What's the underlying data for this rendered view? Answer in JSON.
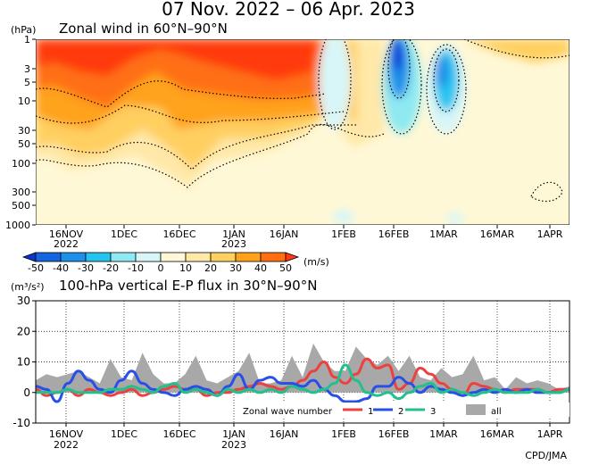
{
  "title": "07 Nov. 2022 – 06 Apr. 2023",
  "footer": "CPD/JMA",
  "panel_top": {
    "unit": "(hPa)",
    "title": "Zonal wind in 60°N–90°N",
    "y_ticks": [
      "1",
      "3",
      "5",
      "10",
      "30",
      "50",
      "100",
      "300",
      "500",
      "1000"
    ],
    "x_ticks": [
      "16NOV",
      "1DEC",
      "16DEC",
      "1JAN",
      "16JAN",
      "1FEB",
      "16FEB",
      "1MAR",
      "16MAR",
      "1APR"
    ],
    "year_labels": [
      "2022",
      "2023"
    ],
    "colorbar_unit": "(m/s)",
    "colorbar_labels": [
      "-50",
      "-40",
      "-30",
      "-20",
      "-10",
      "0",
      "10",
      "20",
      "30",
      "40",
      "50"
    ],
    "colorbar_colors": [
      "#0a35d6",
      "#1565e0",
      "#1f8fe8",
      "#25c4f0",
      "#8ee9f2",
      "#d8f6f8",
      "#fff8d6",
      "#ffe8a8",
      "#ffcf60",
      "#ffa21a",
      "#ff6f12",
      "#ff3a10"
    ]
  },
  "chart_data": {
    "type": "line",
    "title": "100-hPa vertical E-P flux in 30°N–90°N",
    "unit_label": "(m³/s²)",
    "ylabel": "",
    "ylim": [
      -10,
      30
    ],
    "y_ticks": [
      "30",
      "20",
      "10",
      "0",
      "-10"
    ],
    "x_ticks": [
      "16NOV",
      "1DEC",
      "16DEC",
      "1JAN",
      "16JAN",
      "1FEB",
      "16FEB",
      "1MAR",
      "16MAR",
      "1APR"
    ],
    "year_labels": [
      "2022",
      "2023"
    ],
    "legend_title": "Zonal wave number",
    "legend_position": "bottom-right",
    "x": [
      0,
      3,
      6,
      9,
      12,
      15,
      18,
      21,
      24,
      27,
      30,
      33,
      36,
      39,
      42,
      45,
      48,
      51,
      54,
      57,
      60,
      63,
      66,
      69,
      72,
      75,
      78,
      81,
      84,
      87,
      90,
      93,
      96,
      99,
      102,
      105,
      108,
      111,
      114,
      117,
      120,
      123,
      126,
      129,
      132,
      135,
      138,
      141,
      144,
      147,
      150
    ],
    "series": [
      {
        "name": "all",
        "color": "#a8a8a8",
        "values": [
          4,
          6,
          5,
          6,
          7,
          5,
          3,
          11,
          5,
          4,
          13,
          6,
          3,
          3,
          6,
          12,
          4,
          3,
          5,
          7,
          13,
          3,
          3,
          4,
          12,
          5,
          16,
          10,
          7,
          7,
          15,
          11,
          9,
          12,
          7,
          12,
          5,
          4,
          8,
          5,
          6,
          12,
          4,
          5,
          1,
          5,
          3,
          4,
          3,
          1,
          2
        ]
      },
      {
        "name": "1",
        "color": "#ee4040",
        "values": [
          1,
          -1,
          0,
          1,
          -1,
          1,
          0,
          -1,
          0,
          1,
          -1,
          0,
          1,
          2,
          1,
          1,
          -1,
          0,
          0,
          1,
          2,
          3,
          2,
          1,
          2,
          4,
          7,
          10,
          5,
          3,
          6,
          11,
          8,
          9,
          1,
          3,
          8,
          6,
          3,
          1,
          -1,
          3,
          2,
          1,
          0,
          1,
          1,
          1,
          0,
          1,
          1
        ]
      },
      {
        "name": "2",
        "color": "#2850e8",
        "values": [
          2,
          1,
          -3,
          3,
          7,
          4,
          1,
          0,
          4,
          7,
          3,
          1,
          0,
          -1,
          1,
          2,
          1,
          -1,
          2,
          6,
          1,
          4,
          5,
          3,
          3,
          2,
          4,
          1,
          -1,
          -3,
          -3,
          -2,
          2,
          2,
          5,
          3,
          0,
          2,
          1,
          0,
          -1,
          0,
          1,
          0,
          1,
          0,
          1,
          0,
          0,
          0,
          1
        ]
      },
      {
        "name": "3",
        "color": "#22c08a",
        "values": [
          0,
          0,
          0,
          1,
          0,
          0,
          0,
          1,
          1,
          2,
          1,
          0,
          2,
          3,
          0,
          1,
          0,
          -1,
          1,
          0,
          1,
          0,
          1,
          0,
          2,
          1,
          0,
          1,
          3,
          9,
          4,
          0,
          -1,
          0,
          -2,
          0,
          2,
          3,
          0,
          1,
          0,
          -1,
          0,
          1,
          0,
          0,
          0,
          1,
          0,
          0,
          1
        ]
      }
    ]
  }
}
